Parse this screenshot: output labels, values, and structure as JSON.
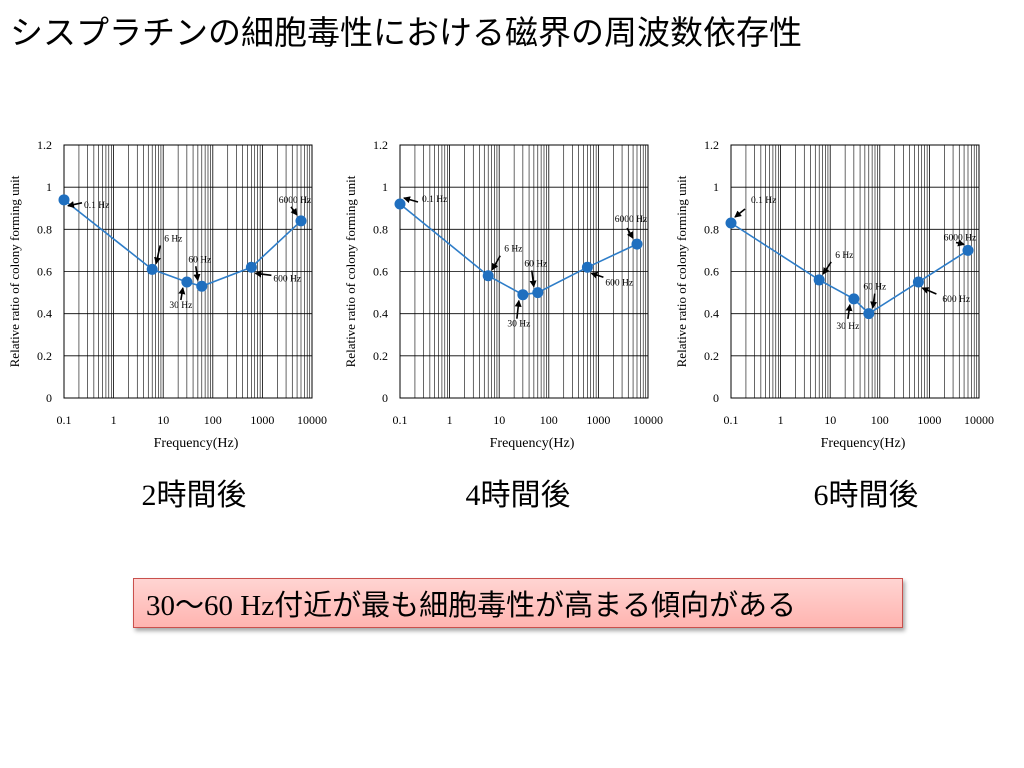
{
  "slide": {
    "title": "シスプラチンの細胞毒性における磁界の周波数依存性",
    "conclusion": "30～60 Hz付近が最も細胞毒性が高まる傾向がある"
  },
  "colors": {
    "series_line": "#2e7dc8",
    "series_marker": "#1f6fbf",
    "conclusion_border": "#c9504c",
    "conclusion_fill": "#ffc4c1"
  },
  "chart_data": [
    {
      "type": "line",
      "caption": "2時間後",
      "xlabel": "Frequency(Hz)",
      "ylabel": "Relative ratio of colony forming unit",
      "xscale": "log",
      "xlim": [
        0.1,
        10000
      ],
      "ylim": [
        0,
        1.2
      ],
      "x_ticks": [
        "0.1",
        "1",
        "10",
        "100",
        "1000",
        "10000"
      ],
      "y_ticks": [
        "0",
        "0.2",
        "0.4",
        "0.6",
        "0.8",
        "1",
        "1.2"
      ],
      "grid": true,
      "x": [
        0.1,
        6,
        30,
        60,
        600,
        6000
      ],
      "values": [
        0.94,
        0.61,
        0.55,
        0.53,
        0.62,
        0.84
      ],
      "point_labels": [
        "0.1 Hz",
        "6 Hz",
        "30 Hz",
        "60 Hz",
        "600 Hz",
        "6000 Hz"
      ]
    },
    {
      "type": "line",
      "caption": "4時間後",
      "xlabel": "Frequency(Hz)",
      "ylabel": "Relative ratio of colony forming unit",
      "xscale": "log",
      "xlim": [
        0.1,
        10000
      ],
      "ylim": [
        0,
        1.2
      ],
      "x_ticks": [
        "0.1",
        "1",
        "10",
        "100",
        "1000",
        "10000"
      ],
      "y_ticks": [
        "0",
        "0.2",
        "0.4",
        "0.6",
        "0.8",
        "1",
        "1.2"
      ],
      "grid": true,
      "x": [
        0.1,
        6,
        30,
        60,
        600,
        6000
      ],
      "values": [
        0.92,
        0.58,
        0.49,
        0.5,
        0.62,
        0.73
      ],
      "point_labels": [
        "0.1 Hz",
        "6 Hz",
        "30 Hz",
        "60 Hz",
        "600 Hz",
        "6000 Hz"
      ]
    },
    {
      "type": "line",
      "caption": "6時間後",
      "xlabel": "Frequency(Hz)",
      "ylabel": "Relative ratio of colony forming unit",
      "xscale": "log",
      "xlim": [
        0.1,
        10000
      ],
      "ylim": [
        0,
        1.2
      ],
      "x_ticks": [
        "0.1",
        "1",
        "10",
        "100",
        "1000",
        "10000"
      ],
      "y_ticks": [
        "0",
        "0.2",
        "0.4",
        "0.6",
        "0.8",
        "1",
        "1.2"
      ],
      "grid": true,
      "x": [
        0.1,
        6,
        30,
        60,
        600,
        6000
      ],
      "values": [
        0.83,
        0.56,
        0.47,
        0.4,
        0.55,
        0.7
      ],
      "point_labels": [
        "0.1 Hz",
        "6 Hz",
        "30 Hz",
        "60 Hz",
        "600 Hz",
        "6000 Hz"
      ]
    }
  ]
}
